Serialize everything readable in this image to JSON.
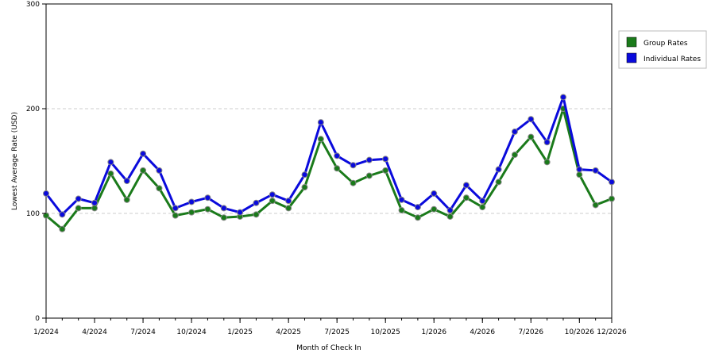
{
  "chart_data": {
    "type": "line",
    "xlabel": "Month of Check In",
    "ylabel": "Lowest Average Rate (USD)",
    "ylim": [
      0,
      300
    ],
    "yticks": [
      0,
      100,
      200,
      300
    ],
    "grid": "horizontal-dashed",
    "legend_position": "right",
    "x_tick_labels": [
      "1/2024",
      "4/2024",
      "7/2024",
      "10/2024",
      "1/2025",
      "4/2025",
      "7/2025",
      "10/2025",
      "1/2026",
      "4/2026",
      "7/2026",
      "10/2026",
      "12/2026"
    ],
    "x_tick_indices": [
      0,
      3,
      6,
      9,
      12,
      15,
      18,
      21,
      24,
      27,
      30,
      33,
      35
    ],
    "months": [
      "1/2024",
      "2/2024",
      "3/2024",
      "4/2024",
      "5/2024",
      "6/2024",
      "7/2024",
      "8/2024",
      "9/2024",
      "10/2024",
      "11/2024",
      "12/2024",
      "1/2025",
      "2/2025",
      "3/2025",
      "4/2025",
      "5/2025",
      "6/2025",
      "7/2025",
      "8/2025",
      "9/2025",
      "10/2025",
      "11/2025",
      "12/2025",
      "1/2026",
      "2/2026",
      "3/2026",
      "4/2026",
      "5/2026",
      "6/2026",
      "7/2026",
      "8/2026",
      "9/2026",
      "10/2026",
      "11/2026",
      "12/2026"
    ],
    "series": [
      {
        "name": "Group Rates",
        "color": "#1a7a1a",
        "values": [
          98,
          85,
          105,
          105,
          138,
          113,
          141,
          124,
          98,
          101,
          104,
          96,
          97,
          99,
          112,
          105,
          125,
          171,
          143,
          129,
          136,
          141,
          103,
          96,
          104,
          97,
          115,
          106,
          130,
          156,
          173,
          149,
          200,
          137,
          108,
          114
        ]
      },
      {
        "name": "Individual Rates",
        "color": "#0a0adc",
        "values": [
          119,
          99,
          114,
          110,
          149,
          131,
          157,
          141,
          105,
          111,
          115,
          105,
          101,
          110,
          118,
          112,
          137,
          187,
          155,
          146,
          151,
          152,
          113,
          106,
          119,
          103,
          127,
          112,
          142,
          178,
          190,
          168,
          211,
          142,
          141,
          130
        ]
      }
    ]
  }
}
